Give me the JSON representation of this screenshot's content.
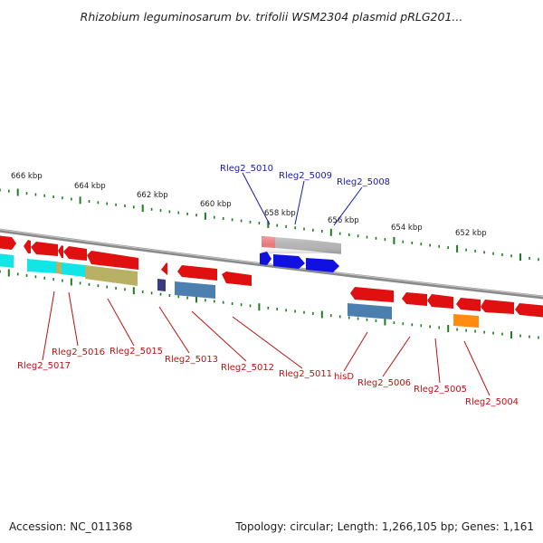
{
  "title": "Rhizobium leguminosarum bv. trifolii WSM2304 plasmid pRLG201...",
  "footer": {
    "accession": "Accession: NC_011368",
    "summary": "Topology: circular; Length: 1,266,105 bp; Genes: 1,161"
  },
  "ticks": [
    {
      "label": "666 kbp"
    },
    {
      "label": "664 kbp"
    },
    {
      "label": "662 kbp"
    },
    {
      "label": "660 kbp"
    },
    {
      "label": "658 kbp"
    },
    {
      "label": "656 kbp"
    },
    {
      "label": "654 kbp"
    },
    {
      "label": "652 kbp"
    }
  ],
  "gene_labels_top": [
    {
      "name": "Rleg2_5010"
    },
    {
      "name": "Rleg2_5009"
    },
    {
      "name": "Rleg2_5008"
    }
  ],
  "gene_labels_bottom": [
    {
      "name": "Rleg2_5017"
    },
    {
      "name": "Rleg2_5016"
    },
    {
      "name": "Rleg2_5015"
    },
    {
      "name": "Rleg2_5013"
    },
    {
      "name": "Rleg2_5012"
    },
    {
      "name": "Rleg2_5011"
    },
    {
      "name": "hisD"
    },
    {
      "name": "Rleg2_5006"
    },
    {
      "name": "Rleg2_5005"
    },
    {
      "name": "Rleg2_5004"
    }
  ],
  "colors": {
    "backbone": "#8a8a8a",
    "tick": "#1e7d1e",
    "top_label": "#1a1aaa",
    "bottom_label": "#bb1111",
    "red": "#e01010",
    "blue": "#1010e0",
    "cyan": "#10e6e6",
    "olive": "#b8b064",
    "steel": "#4a7fb0",
    "gray": "#b4b4b4",
    "pink": "#e87878",
    "orange": "#ff8c10",
    "navy": "#3a3a80"
  }
}
